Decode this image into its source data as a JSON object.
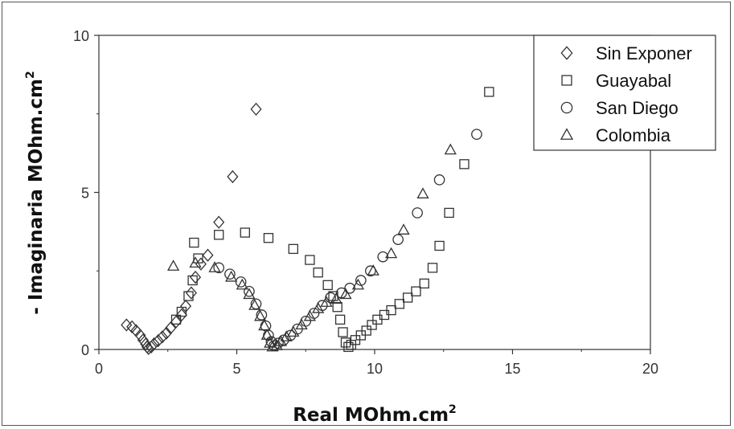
{
  "chart_data": {
    "type": "scatter",
    "xlabel": "Real MOhm.cm",
    "xlabel_sup": "2",
    "ylabel": "- Imaginaria MOhm.cm",
    "ylabel_sup": "2",
    "xlim": [
      0,
      20
    ],
    "ylim": [
      0,
      10
    ],
    "x_ticks": [
      0,
      5,
      10,
      15,
      20
    ],
    "y_ticks": [
      0,
      5,
      10
    ],
    "grid": false,
    "legend_position": "top-right",
    "series": [
      {
        "name": "Sin Exponer",
        "marker": "diamond",
        "points": [
          [
            1.0,
            0.78
          ],
          [
            1.2,
            0.72
          ],
          [
            1.35,
            0.6
          ],
          [
            1.5,
            0.45
          ],
          [
            1.6,
            0.3
          ],
          [
            1.7,
            0.17
          ],
          [
            1.75,
            0.08
          ],
          [
            1.8,
            0.03
          ],
          [
            1.9,
            0.08
          ],
          [
            2.0,
            0.18
          ],
          [
            2.15,
            0.28
          ],
          [
            2.3,
            0.4
          ],
          [
            2.45,
            0.52
          ],
          [
            2.6,
            0.68
          ],
          [
            2.8,
            0.88
          ],
          [
            3.0,
            1.1
          ],
          [
            3.15,
            1.38
          ],
          [
            3.35,
            1.8
          ],
          [
            3.5,
            2.3
          ],
          [
            3.7,
            2.72
          ],
          [
            3.95,
            3.0
          ],
          [
            4.35,
            4.05
          ],
          [
            4.85,
            5.5
          ],
          [
            5.7,
            7.65
          ]
        ]
      },
      {
        "name": "Guayabal",
        "marker": "square",
        "points": [
          [
            2.8,
            0.95
          ],
          [
            3.0,
            1.2
          ],
          [
            3.25,
            1.7
          ],
          [
            3.4,
            2.2
          ],
          [
            3.6,
            2.9
          ],
          [
            3.45,
            3.4
          ],
          [
            4.35,
            3.65
          ],
          [
            5.3,
            3.72
          ],
          [
            6.15,
            3.55
          ],
          [
            7.05,
            3.2
          ],
          [
            7.65,
            2.85
          ],
          [
            7.95,
            2.45
          ],
          [
            8.3,
            2.05
          ],
          [
            8.5,
            1.7
          ],
          [
            8.65,
            1.35
          ],
          [
            8.75,
            0.95
          ],
          [
            8.85,
            0.55
          ],
          [
            8.95,
            0.22
          ],
          [
            9.05,
            0.08
          ],
          [
            9.15,
            0.15
          ],
          [
            9.3,
            0.3
          ],
          [
            9.5,
            0.45
          ],
          [
            9.7,
            0.6
          ],
          [
            9.9,
            0.78
          ],
          [
            10.1,
            0.95
          ],
          [
            10.35,
            1.1
          ],
          [
            10.6,
            1.25
          ],
          [
            10.9,
            1.45
          ],
          [
            11.2,
            1.65
          ],
          [
            11.5,
            1.85
          ],
          [
            11.8,
            2.1
          ],
          [
            12.1,
            2.6
          ],
          [
            12.35,
            3.3
          ],
          [
            12.7,
            4.35
          ],
          [
            13.25,
            5.9
          ],
          [
            14.15,
            8.2
          ]
        ]
      },
      {
        "name": "San Diego",
        "marker": "circle",
        "points": [
          [
            4.35,
            2.6
          ],
          [
            4.75,
            2.4
          ],
          [
            5.15,
            2.15
          ],
          [
            5.45,
            1.85
          ],
          [
            5.7,
            1.45
          ],
          [
            5.9,
            1.1
          ],
          [
            6.05,
            0.75
          ],
          [
            6.15,
            0.45
          ],
          [
            6.25,
            0.25
          ],
          [
            6.35,
            0.12
          ],
          [
            6.5,
            0.2
          ],
          [
            6.7,
            0.3
          ],
          [
            6.95,
            0.45
          ],
          [
            7.2,
            0.65
          ],
          [
            7.5,
            0.9
          ],
          [
            7.8,
            1.15
          ],
          [
            8.1,
            1.4
          ],
          [
            8.4,
            1.65
          ],
          [
            8.8,
            1.8
          ],
          [
            9.1,
            1.95
          ],
          [
            9.5,
            2.2
          ],
          [
            9.85,
            2.5
          ],
          [
            10.3,
            2.95
          ],
          [
            10.85,
            3.5
          ],
          [
            11.55,
            4.35
          ],
          [
            12.35,
            5.4
          ],
          [
            13.7,
            6.85
          ]
        ]
      },
      {
        "name": "Colombia",
        "marker": "triangle",
        "points": [
          [
            2.7,
            2.65
          ],
          [
            3.5,
            2.75
          ],
          [
            4.2,
            2.6
          ],
          [
            4.8,
            2.3
          ],
          [
            5.2,
            2.05
          ],
          [
            5.45,
            1.75
          ],
          [
            5.65,
            1.4
          ],
          [
            5.85,
            1.05
          ],
          [
            6.0,
            0.75
          ],
          [
            6.1,
            0.45
          ],
          [
            6.2,
            0.2
          ],
          [
            6.3,
            0.08
          ],
          [
            6.45,
            0.12
          ],
          [
            6.6,
            0.25
          ],
          [
            6.8,
            0.4
          ],
          [
            7.05,
            0.55
          ],
          [
            7.35,
            0.78
          ],
          [
            7.65,
            1.05
          ],
          [
            7.95,
            1.3
          ],
          [
            8.25,
            1.5
          ],
          [
            8.6,
            1.6
          ],
          [
            8.95,
            1.75
          ],
          [
            9.4,
            2.05
          ],
          [
            9.95,
            2.5
          ],
          [
            10.6,
            3.05
          ],
          [
            11.05,
            3.8
          ],
          [
            11.75,
            4.95
          ],
          [
            12.75,
            6.35
          ]
        ]
      }
    ]
  }
}
